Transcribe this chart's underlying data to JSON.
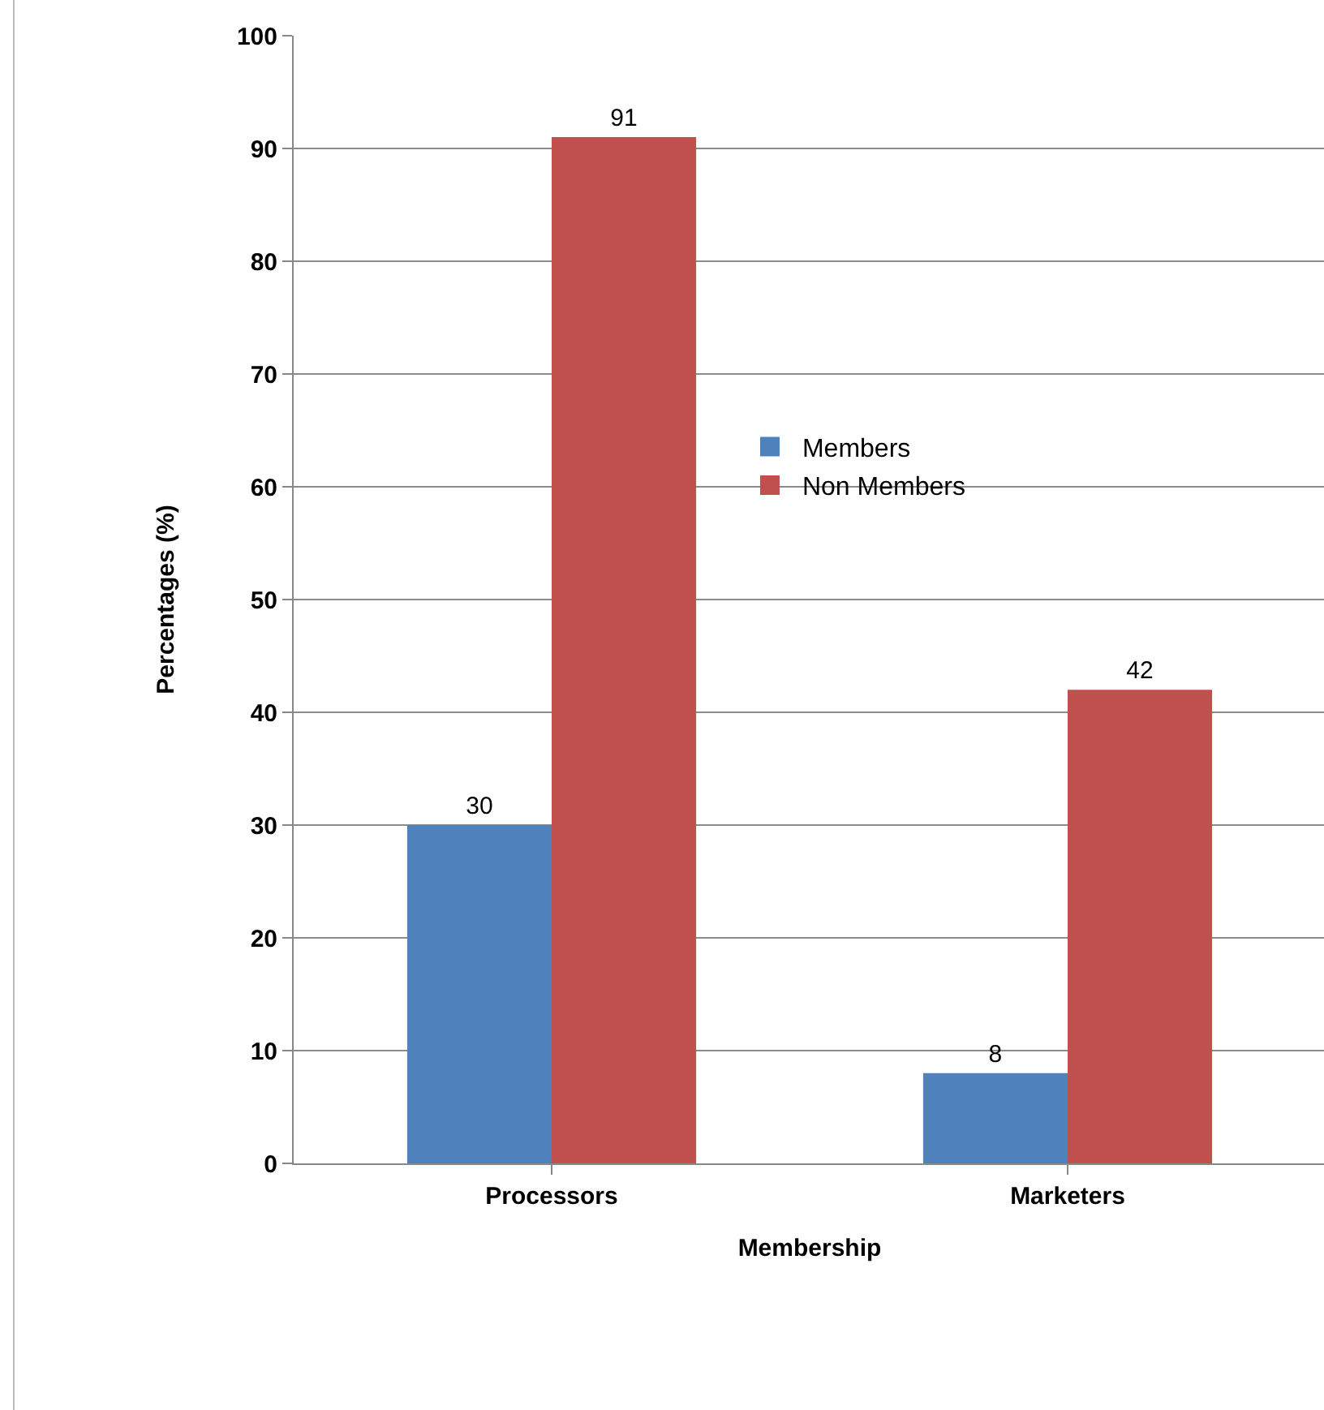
{
  "chart_data": {
    "type": "bar",
    "xlabel": "Membership",
    "ylabel": "Percentages (%)",
    "categories": [
      "Processors",
      "Marketers"
    ],
    "series": [
      {
        "name": "Members",
        "color": "#4f81bd",
        "values": [
          30,
          8
        ]
      },
      {
        "name": "Non Members",
        "color": "#c0504d",
        "values": [
          91,
          42
        ]
      }
    ],
    "ylim": [
      0,
      100
    ],
    "yticks": [
      0,
      10,
      20,
      30,
      40,
      50,
      60,
      70,
      80,
      90,
      100
    ],
    "grid": "y",
    "legend": "center",
    "data_labels": true
  }
}
